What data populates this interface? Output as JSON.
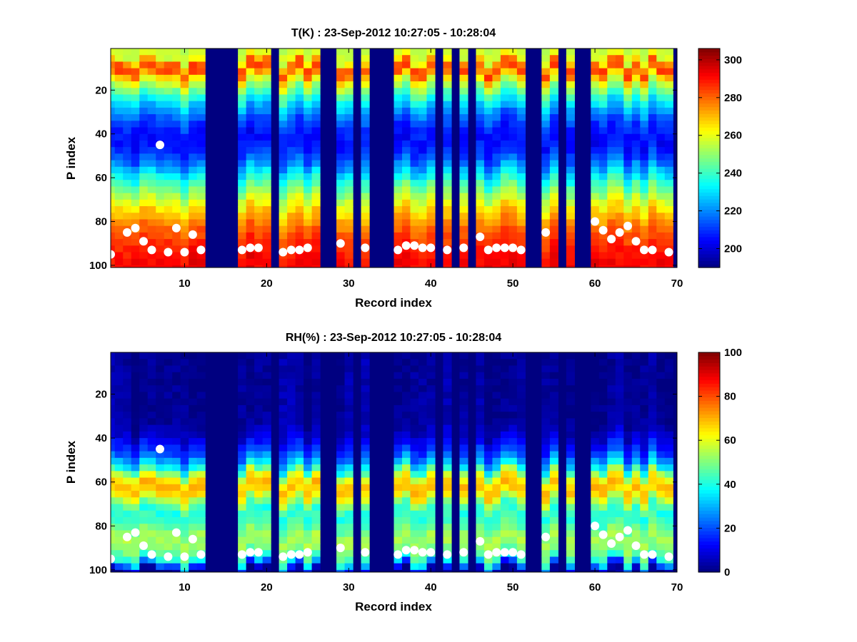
{
  "chart_data": [
    {
      "type": "heatmap",
      "title": "T(K) : 23-Sep-2012 10:27:05 - 10:28:04",
      "xlabel": "Record index",
      "ylabel": "P index",
      "xlim": [
        1,
        70
      ],
      "ylim": [
        1,
        101
      ],
      "y_reversed": true,
      "colormap": "jet",
      "x_ticks": [
        "10",
        "20",
        "30",
        "40",
        "50",
        "60",
        "70"
      ],
      "y_ticks": [
        "20",
        "40",
        "60",
        "80",
        "100"
      ],
      "colorbar": {
        "range": [
          190,
          306
        ],
        "ticks": [
          "200",
          "220",
          "240",
          "260",
          "280",
          "300"
        ],
        "tick_values": [
          200,
          220,
          240,
          260,
          280,
          300
        ]
      },
      "missing_record_ranges": [
        [
          12.5,
          16.5
        ],
        [
          20.5,
          21.5
        ],
        [
          26.5,
          28.5
        ],
        [
          30.5,
          31.5
        ],
        [
          32.5,
          35.5
        ],
        [
          40.5,
          41.5
        ],
        [
          42.5,
          43.5
        ],
        [
          44.5,
          45.5
        ],
        [
          51.5,
          53.5
        ],
        [
          55.5,
          56.5
        ],
        [
          57.5,
          59.5
        ],
        [
          69.5,
          70
        ]
      ],
      "profile_levels": [
        {
          "p": 1,
          "value": 256
        },
        {
          "p": 6,
          "value": 258
        },
        {
          "p": 9,
          "value": 282
        },
        {
          "p": 12,
          "value": 283
        },
        {
          "p": 15,
          "value": 266
        },
        {
          "p": 20,
          "value": 248
        },
        {
          "p": 28,
          "value": 226
        },
        {
          "p": 36,
          "value": 210
        },
        {
          "p": 44,
          "value": 204
        },
        {
          "p": 52,
          "value": 214
        },
        {
          "p": 60,
          "value": 234
        },
        {
          "p": 68,
          "value": 252
        },
        {
          "p": 76,
          "value": 268
        },
        {
          "p": 84,
          "value": 280
        },
        {
          "p": 92,
          "value": 288
        },
        {
          "p": 101,
          "value": 292
        }
      ],
      "markers": {
        "color": "#ffffff",
        "points": [
          [
            1,
            95
          ],
          [
            3,
            85
          ],
          [
            4,
            83
          ],
          [
            5,
            89
          ],
          [
            6,
            93
          ],
          [
            7,
            45
          ],
          [
            8,
            94
          ],
          [
            9,
            83
          ],
          [
            10,
            94
          ],
          [
            11,
            86
          ],
          [
            12,
            93
          ],
          [
            17,
            93
          ],
          [
            18,
            92
          ],
          [
            19,
            92
          ],
          [
            22,
            94
          ],
          [
            23,
            93
          ],
          [
            24,
            93
          ],
          [
            25,
            92
          ],
          [
            29,
            90
          ],
          [
            32,
            92
          ],
          [
            36,
            93
          ],
          [
            37,
            91
          ],
          [
            38,
            91
          ],
          [
            39,
            92
          ],
          [
            40,
            92
          ],
          [
            42,
            93
          ],
          [
            44,
            92
          ],
          [
            46,
            87
          ],
          [
            47,
            93
          ],
          [
            48,
            92
          ],
          [
            49,
            92
          ],
          [
            50,
            92
          ],
          [
            51,
            93
          ],
          [
            54,
            85
          ],
          [
            60,
            80
          ],
          [
            61,
            84
          ],
          [
            62,
            88
          ],
          [
            63,
            85
          ],
          [
            64,
            82
          ],
          [
            65,
            89
          ],
          [
            66,
            93
          ],
          [
            67,
            93
          ],
          [
            69,
            94
          ]
        ]
      }
    },
    {
      "type": "heatmap",
      "title": "RH(%) : 23-Sep-2012 10:27:05 - 10:28:04",
      "xlabel": "Record index",
      "ylabel": "P index",
      "xlim": [
        1,
        70
      ],
      "ylim": [
        1,
        101
      ],
      "y_reversed": true,
      "colormap": "jet",
      "x_ticks": [
        "10",
        "20",
        "30",
        "40",
        "50",
        "60",
        "70"
      ],
      "y_ticks": [
        "20",
        "40",
        "60",
        "80",
        "100"
      ],
      "colorbar": {
        "range": [
          0,
          100
        ],
        "ticks": [
          "0",
          "20",
          "40",
          "60",
          "80",
          "100"
        ],
        "tick_values": [
          0,
          20,
          40,
          60,
          80,
          100
        ]
      },
      "missing_record_ranges": [
        [
          12.5,
          16.5
        ],
        [
          20.5,
          21.5
        ],
        [
          26.5,
          28.5
        ],
        [
          30.5,
          31.5
        ],
        [
          32.5,
          35.5
        ],
        [
          40.5,
          41.5
        ],
        [
          42.5,
          43.5
        ],
        [
          44.5,
          45.5
        ],
        [
          51.5,
          53.5
        ],
        [
          55.5,
          56.5
        ],
        [
          57.5,
          59.5
        ],
        [
          69.5,
          70
        ]
      ],
      "profile_levels": [
        {
          "p": 1,
          "value": 2
        },
        {
          "p": 34,
          "value": 3
        },
        {
          "p": 40,
          "value": 8
        },
        {
          "p": 48,
          "value": 20
        },
        {
          "p": 54,
          "value": 38
        },
        {
          "p": 58,
          "value": 60
        },
        {
          "p": 62,
          "value": 70
        },
        {
          "p": 66,
          "value": 66
        },
        {
          "p": 70,
          "value": 50
        },
        {
          "p": 74,
          "value": 40
        },
        {
          "p": 80,
          "value": 45
        },
        {
          "p": 86,
          "value": 55
        },
        {
          "p": 92,
          "value": 50
        },
        {
          "p": 96,
          "value": 40
        },
        {
          "p": 101,
          "value": 2
        }
      ],
      "markers": {
        "color": "#ffffff",
        "points": [
          [
            1,
            95
          ],
          [
            3,
            85
          ],
          [
            4,
            83
          ],
          [
            5,
            89
          ],
          [
            6,
            93
          ],
          [
            7,
            45
          ],
          [
            8,
            94
          ],
          [
            9,
            83
          ],
          [
            10,
            94
          ],
          [
            11,
            86
          ],
          [
            12,
            93
          ],
          [
            17,
            93
          ],
          [
            18,
            92
          ],
          [
            19,
            92
          ],
          [
            22,
            94
          ],
          [
            23,
            93
          ],
          [
            24,
            93
          ],
          [
            25,
            92
          ],
          [
            29,
            90
          ],
          [
            32,
            92
          ],
          [
            36,
            93
          ],
          [
            37,
            91
          ],
          [
            38,
            91
          ],
          [
            39,
            92
          ],
          [
            40,
            92
          ],
          [
            42,
            93
          ],
          [
            44,
            92
          ],
          [
            46,
            87
          ],
          [
            47,
            93
          ],
          [
            48,
            92
          ],
          [
            49,
            92
          ],
          [
            50,
            92
          ],
          [
            51,
            93
          ],
          [
            54,
            85
          ],
          [
            60,
            80
          ],
          [
            61,
            84
          ],
          [
            62,
            88
          ],
          [
            63,
            85
          ],
          [
            64,
            82
          ],
          [
            65,
            89
          ],
          [
            66,
            93
          ],
          [
            67,
            93
          ],
          [
            69,
            94
          ]
        ]
      }
    }
  ]
}
